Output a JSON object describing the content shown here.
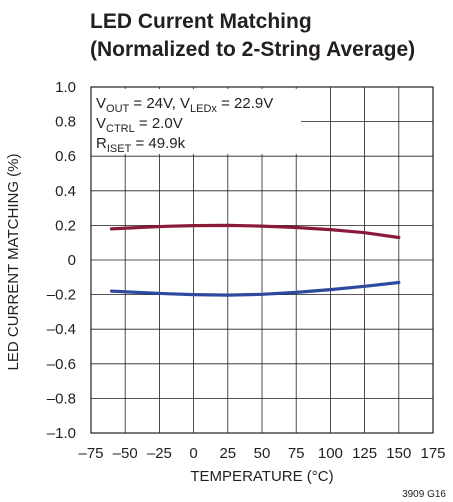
{
  "chart_data": {
    "type": "line",
    "title_lines": [
      "LED Current Matching",
      "(Normalized to 2-String Average)"
    ],
    "xlabel": "TEMPERATURE (°C)",
    "ylabel": "LED CURRENT MATCHING (%)",
    "xlim": [
      -75,
      175
    ],
    "ylim": [
      -1.0,
      1.0
    ],
    "xticks": [
      -75,
      -50,
      -25,
      0,
      25,
      50,
      75,
      100,
      125,
      150,
      175
    ],
    "xtick_labels": [
      "–75",
      "–50",
      "–25",
      "0",
      "25",
      "50",
      "75",
      "100",
      "125",
      "150",
      "175"
    ],
    "yticks": [
      1.0,
      0.8,
      0.6,
      0.4,
      0.2,
      0,
      -0.2,
      -0.4,
      -0.6,
      -0.8,
      -1.0
    ],
    "ytick_labels": [
      "1.0",
      "0.8",
      "0.6",
      "0.4",
      "0.2",
      "0",
      "–0.2",
      "–0.4",
      "–0.6",
      "–0.8",
      "–1.0"
    ],
    "grid": true,
    "annotations": {
      "line1": {
        "a": "V",
        "a_sub": "OUT",
        "b": " = 24V, V",
        "b_sub": "LEDx",
        "c": " = 22.9V"
      },
      "line2": {
        "a": "V",
        "a_sub": "CTRL",
        "b": " = 2.0V"
      },
      "line3": {
        "a": "R",
        "a_sub": "ISET",
        "b": " = 49.9k"
      }
    },
    "series": [
      {
        "color": "#8b1a3a",
        "x": [
          -60,
          -40,
          -20,
          0,
          25,
          50,
          75,
          100,
          125,
          150
        ],
        "y": [
          0.18,
          0.188,
          0.195,
          0.199,
          0.2,
          0.196,
          0.188,
          0.176,
          0.158,
          0.13
        ]
      },
      {
        "color": "#2e4a9e",
        "x": [
          -60,
          -40,
          -20,
          0,
          25,
          50,
          75,
          100,
          125,
          150
        ],
        "y": [
          -0.18,
          -0.188,
          -0.195,
          -0.2,
          -0.203,
          -0.198,
          -0.187,
          -0.171,
          -0.152,
          -0.13
        ]
      }
    ],
    "figure_id": "3909 G16"
  }
}
